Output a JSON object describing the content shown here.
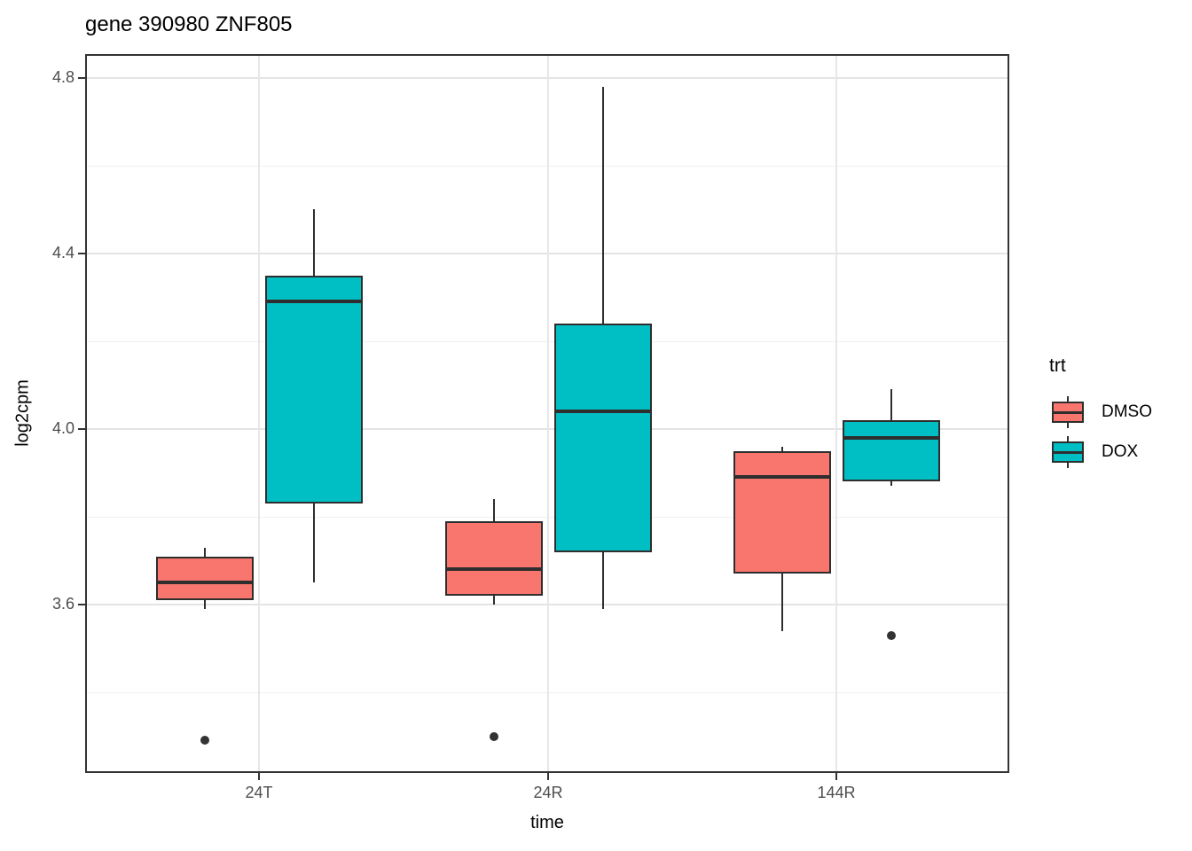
{
  "title": "gene 390980 ZNF805",
  "chart_data": {
    "type": "boxplot",
    "title": "gene 390980 ZNF805",
    "xlabel": "time",
    "ylabel": "log2cpm",
    "categories": [
      "24T",
      "24R",
      "144R"
    ],
    "y_ticks": [
      4.8,
      4.4,
      4.0,
      3.6
    ],
    "y_tick_labels": [
      "4.8",
      "4.4",
      "4.0",
      "3.6"
    ],
    "y_minor_ticks": [
      4.6,
      4.2,
      3.8,
      3.4
    ],
    "ylim": [
      3.21,
      4.86
    ],
    "grid": true,
    "legend": {
      "title": "trt",
      "position": "right",
      "entries": [
        {
          "label": "DMSO",
          "color": "#F8766D"
        },
        {
          "label": "DOX",
          "color": "#00BFC4"
        }
      ]
    },
    "series": [
      {
        "name": "DMSO",
        "color": "#F8766D",
        "boxes": [
          {
            "category": "24T",
            "whisker_low": 3.59,
            "q1": 3.61,
            "median": 3.65,
            "q3": 3.71,
            "whisker_high": 3.73,
            "outliers": [
              3.29
            ]
          },
          {
            "category": "24R",
            "whisker_low": 3.6,
            "q1": 3.62,
            "median": 3.68,
            "q3": 3.79,
            "whisker_high": 3.84,
            "outliers": [
              3.3
            ]
          },
          {
            "category": "144R",
            "whisker_low": 3.54,
            "q1": 3.67,
            "median": 3.89,
            "q3": 3.95,
            "whisker_high": 3.96,
            "outliers": []
          }
        ]
      },
      {
        "name": "DOX",
        "color": "#00BFC4",
        "boxes": [
          {
            "category": "24T",
            "whisker_low": 3.65,
            "q1": 3.83,
            "median": 4.29,
            "q3": 4.35,
            "whisker_high": 4.5,
            "outliers": []
          },
          {
            "category": "24R",
            "whisker_low": 3.59,
            "q1": 3.72,
            "median": 4.04,
            "q3": 4.24,
            "whisker_high": 4.78,
            "outliers": []
          },
          {
            "category": "144R",
            "whisker_low": 3.87,
            "q1": 3.88,
            "median": 3.98,
            "q3": 4.02,
            "whisker_high": 4.09,
            "outliers": [
              3.53
            ]
          }
        ]
      }
    ]
  },
  "colors": {
    "dmso": "#F8766D",
    "dox": "#00BFC4",
    "box_outline": "#2e2e2e",
    "panel_border": "#333333",
    "grid_major": "#e4e4e4",
    "grid_minor": "#f0f0f0",
    "tick_label_color": "#4d4d4d",
    "outlier": "#333333"
  }
}
